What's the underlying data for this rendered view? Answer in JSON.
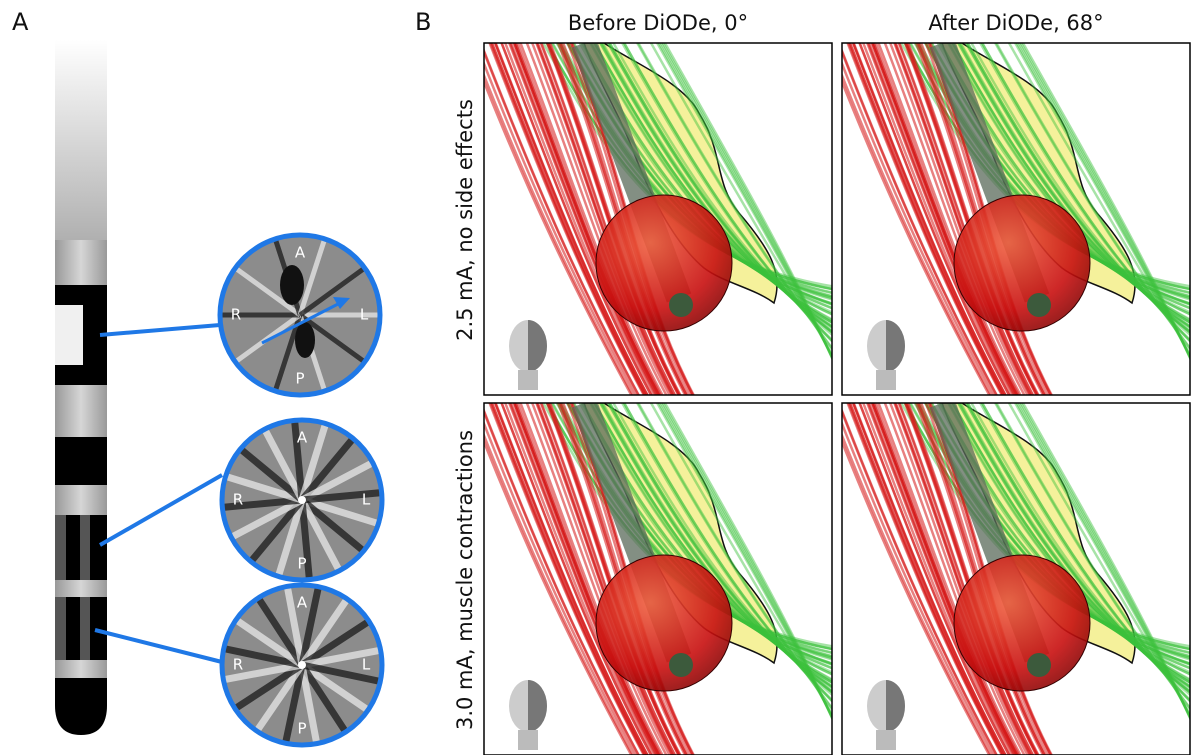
{
  "panel_a": {
    "label": "A",
    "cross_sections": [
      {
        "labels": [
          "A",
          "R",
          "L",
          "P"
        ]
      },
      {
        "labels": [
          "A",
          "R",
          "L",
          "P"
        ]
      },
      {
        "labels": [
          "A",
          "R",
          "L",
          "P"
        ]
      }
    ]
  },
  "panel_b": {
    "label": "B",
    "columns": [
      "Before DiODe, 0°",
      "After DiODe, 68°"
    ],
    "rows": [
      "2.5 mA, no side effects",
      "3.0 mA, muscle contractions"
    ]
  }
}
